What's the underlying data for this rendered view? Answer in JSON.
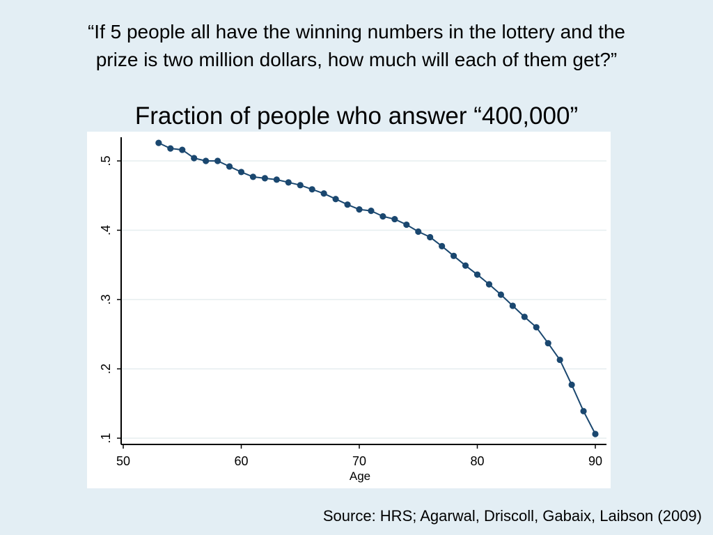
{
  "heading": {
    "line1": "“If 5 people all have the winning numbers in the lottery and the",
    "line2": "prize is two million dollars, how much will each of them get?”"
  },
  "source": "Source: HRS; Agarwal, Driscoll, Gabaix, Laibson (2009)",
  "colors": {
    "page_background": "#e3eef4",
    "plot_background": "#ffffff",
    "series": "#1a476f",
    "grid": "#e6eeef"
  },
  "chart_data": {
    "type": "line",
    "title": "Fraction of people who answer “400,000”",
    "xlabel": "Age",
    "ylabel": "",
    "xlim": [
      50,
      90
    ],
    "ylim": [
      0.1,
      0.53
    ],
    "x_ticks": [
      50,
      60,
      70,
      80,
      90
    ],
    "y_ticks": [
      0.1,
      0.2,
      0.3,
      0.4,
      0.5
    ],
    "y_tick_labels": [
      ".1",
      ".2",
      ".3",
      ".4",
      ".5"
    ],
    "grid": "horizontal",
    "markers": "filled circles",
    "x": [
      53,
      54,
      55,
      56,
      57,
      58,
      59,
      60,
      61,
      62,
      63,
      64,
      65,
      66,
      67,
      68,
      69,
      70,
      71,
      72,
      73,
      74,
      75,
      76,
      77,
      78,
      79,
      80,
      81,
      82,
      83,
      84,
      85,
      86,
      87,
      88,
      89,
      90
    ],
    "y": [
      0.526,
      0.518,
      0.516,
      0.504,
      0.5,
      0.5,
      0.492,
      0.484,
      0.477,
      0.475,
      0.473,
      0.469,
      0.465,
      0.459,
      0.453,
      0.445,
      0.437,
      0.43,
      0.428,
      0.42,
      0.416,
      0.408,
      0.398,
      0.39,
      0.377,
      0.363,
      0.349,
      0.336,
      0.322,
      0.307,
      0.291,
      0.275,
      0.26,
      0.237,
      0.213,
      0.177,
      0.139,
      0.106
    ]
  }
}
